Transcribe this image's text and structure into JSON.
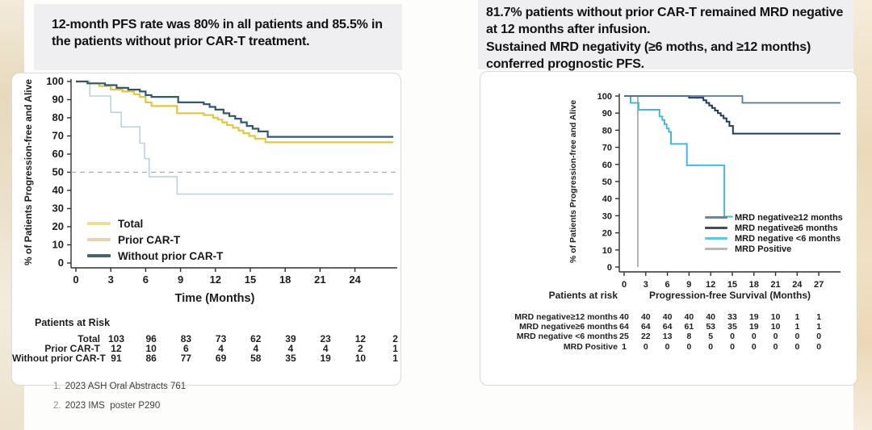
{
  "slide": {
    "left": {
      "title": "12-month PFS rate was 80% in all patients and 85.5% in the patients without prior CAR-T treatment."
    },
    "right": {
      "title_line1": "81.7% patients without prior CAR-T remained MRD negative at 12 months after infusion.",
      "title_line2": "Sustained MRD negativity (≥6 moths, and ≥12 months) conferred prognostic PFS."
    },
    "footnotes": [
      {
        "num": "1.",
        "text": "2023 ASH Oral Abstracts 761"
      },
      {
        "num": "2.",
        "text": "2023 IMS  poster P290"
      }
    ]
  },
  "chart_data": [
    {
      "type": "line",
      "subtype": "kaplan-meier",
      "title": "",
      "xlabel": "Time (Months)",
      "ylabel": "% of Patients Progression-free and Alive",
      "xlim": [
        0,
        27.5
      ],
      "ylim": [
        0,
        100
      ],
      "xticks": [
        0,
        3,
        6,
        9,
        12,
        15,
        18,
        21,
        24
      ],
      "yticks": [
        0,
        10,
        20,
        30,
        40,
        50,
        60,
        70,
        80,
        90,
        100
      ],
      "grid": false,
      "reference_line_y": 50,
      "legend_position": "inside-lower-left",
      "series": [
        {
          "name": "Total",
          "color": "#e3c544",
          "legend_color": "#eadf96",
          "width": 2.2,
          "points": [
            [
              0,
              100
            ],
            [
              1,
              99
            ],
            [
              2,
              97.5
            ],
            [
              3,
              95.5
            ],
            [
              4,
              94.5
            ],
            [
              5,
              93
            ],
            [
              5.5,
              91.5
            ],
            [
              6,
              88.5
            ],
            [
              6.5,
              86.5
            ],
            [
              8.7,
              82.5
            ],
            [
              11,
              81.5
            ],
            [
              11.8,
              80
            ],
            [
              12.2,
              79
            ],
            [
              12.6,
              77.5
            ],
            [
              13,
              76
            ],
            [
              13.5,
              74.5
            ],
            [
              14,
              73
            ],
            [
              14.4,
              71.5
            ],
            [
              14.9,
              70
            ],
            [
              15.4,
              68.5
            ],
            [
              16.3,
              66.5
            ],
            [
              27.3,
              66.5
            ]
          ]
        },
        {
          "name": "Prior CAR-T",
          "color": "#b9d2df",
          "legend_color": "#e9d1b4",
          "width": 1.6,
          "points": [
            [
              0,
              100
            ],
            [
              1.2,
              92
            ],
            [
              3,
              83
            ],
            [
              3.9,
              75
            ],
            [
              5.5,
              66
            ],
            [
              5.9,
              57.5
            ],
            [
              6.3,
              47.5
            ],
            [
              8.7,
              38
            ],
            [
              27.3,
              38
            ]
          ]
        },
        {
          "name": "Without prior CAR-T",
          "color": "#30586f",
          "legend_color": "#4b626d",
          "width": 2.2,
          "points": [
            [
              0,
              100
            ],
            [
              1,
              99
            ],
            [
              2.5,
              98
            ],
            [
              3.5,
              96.5
            ],
            [
              4.5,
              95.5
            ],
            [
              5.5,
              94.5
            ],
            [
              6,
              92.5
            ],
            [
              6.5,
              91.5
            ],
            [
              8.8,
              88.5
            ],
            [
              11,
              87.5
            ],
            [
              11.5,
              86
            ],
            [
              12,
              84.5
            ],
            [
              12.7,
              82.5
            ],
            [
              13.2,
              81
            ],
            [
              13.7,
              79.5
            ],
            [
              14.2,
              77.5
            ],
            [
              14.7,
              75.5
            ],
            [
              15.2,
              74
            ],
            [
              15.7,
              72.5
            ],
            [
              16.5,
              69.5
            ],
            [
              27.3,
              69.5
            ]
          ]
        }
      ],
      "risk_table": {
        "header": "Patients at Risk",
        "time_points": [
          0,
          3,
          6,
          9,
          12,
          15,
          18,
          21,
          24
        ],
        "rows": [
          {
            "label": "Total",
            "values": [
              103,
              96,
              83,
              73,
              62,
              39,
              23,
              12,
              2
            ]
          },
          {
            "label": "Prior CAR-T",
            "values": [
              12,
              10,
              6,
              4,
              4,
              4,
              4,
              2,
              1
            ]
          },
          {
            "label": "Without prior CAR-T",
            "values": [
              91,
              86,
              77,
              69,
              58,
              35,
              19,
              10,
              1
            ]
          }
        ]
      }
    },
    {
      "type": "line",
      "subtype": "kaplan-meier",
      "title": "",
      "xlabel": "Progression-free Survival (Months)",
      "ylabel": "% of Patients Progression-free and Alive",
      "xlim": [
        0,
        30
      ],
      "ylim": [
        0,
        100
      ],
      "xticks": [
        0,
        3,
        6,
        9,
        12,
        15,
        18,
        21,
        24,
        27
      ],
      "yticks": [
        0,
        10,
        20,
        30,
        40,
        50,
        60,
        70,
        80,
        90,
        100
      ],
      "grid": false,
      "reference_line_y": null,
      "legend_position": "inside-lower-right",
      "series": [
        {
          "name": "MRD negative≥12 months",
          "color": "#56799b",
          "legend_color": "#6f8698",
          "width": 1.8,
          "points": [
            [
              0,
              100
            ],
            [
              16.4,
              96
            ],
            [
              30,
              96
            ]
          ]
        },
        {
          "name": "MRD negative≥6 months",
          "color": "#1b3a66",
          "legend_color": "#3e4d5c",
          "width": 2,
          "points": [
            [
              0,
              100
            ],
            [
              9,
              99
            ],
            [
              11,
              97.5
            ],
            [
              11.4,
              96
            ],
            [
              11.8,
              94.5
            ],
            [
              12.2,
              93
            ],
            [
              12.6,
              91.5
            ],
            [
              13,
              90
            ],
            [
              13.4,
              88.5
            ],
            [
              13.8,
              87
            ],
            [
              14.2,
              85
            ],
            [
              14.6,
              82.5
            ],
            [
              15.1,
              78
            ],
            [
              30,
              78
            ]
          ]
        },
        {
          "name": "MRD negative <6 months",
          "color": "#45b8d9",
          "legend_color": "#5ec6e0",
          "width": 2,
          "points": [
            [
              0,
              100
            ],
            [
              0.9,
              96
            ],
            [
              2,
              92
            ],
            [
              4.9,
              88
            ],
            [
              5.3,
              86
            ],
            [
              5.6,
              83.5
            ],
            [
              5.9,
              81
            ],
            [
              6.2,
              79
            ],
            [
              6.5,
              72
            ],
            [
              8.7,
              59.5
            ],
            [
              13.9,
              29.5
            ],
            [
              15.1,
              29.5
            ]
          ]
        },
        {
          "name": "MRD Positive",
          "color": "#9c9ea1",
          "legend_color": "#b5b7ba",
          "width": 1.6,
          "points": [
            [
              1.7,
              100
            ],
            [
              1.9,
              0
            ]
          ]
        }
      ],
      "risk_table": {
        "header": "Patients at risk",
        "time_points": [
          0,
          3,
          6,
          9,
          12,
          15,
          18,
          21,
          24,
          27
        ],
        "rows": [
          {
            "label": "MRD negative≥12 months",
            "values": [
              40,
              40,
              40,
              40,
              40,
              33,
              19,
              10,
              1,
              1
            ]
          },
          {
            "label": "MRD negative≥6 months",
            "values": [
              64,
              64,
              64,
              61,
              53,
              35,
              19,
              10,
              1,
              1
            ]
          },
          {
            "label": "MRD negative <6 months",
            "values": [
              25,
              22,
              13,
              8,
              5,
              0,
              0,
              0,
              0,
              0
            ]
          },
          {
            "label": "MRD Positive",
            "values": [
              1,
              0,
              0,
              0,
              0,
              0,
              0,
              0,
              0,
              0
            ]
          }
        ]
      }
    }
  ]
}
